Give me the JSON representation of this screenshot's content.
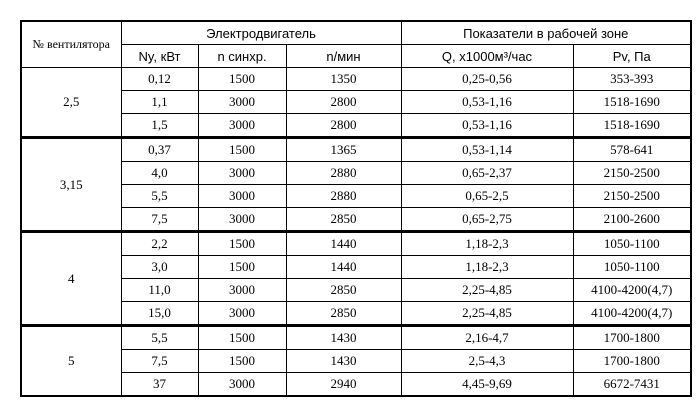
{
  "header": {
    "fan": "№ вентилятора",
    "motor": "Электродвигатель",
    "zone": "Показатели в рабочей зоне",
    "columns": [
      "Ny, кВт",
      "n синхр.",
      "n/мин",
      "Q, x1000м³/час",
      "Pv, Па"
    ]
  },
  "groups": [
    {
      "fan": "2,5",
      "rows": [
        [
          "0,12",
          "1500",
          "1350",
          "0,25-0,56",
          "353-393"
        ],
        [
          "1,1",
          "3000",
          "2800",
          "0,53-1,16",
          "1518-1690"
        ],
        [
          "1,5",
          "3000",
          "2800",
          "0,53-1,16",
          "1518-1690"
        ]
      ]
    },
    {
      "fan": "3,15",
      "rows": [
        [
          "0,37",
          "1500",
          "1365",
          "0,53-1,14",
          "578-641"
        ],
        [
          "4,0",
          "3000",
          "2880",
          "0,65-2,37",
          "2150-2500"
        ],
        [
          "5,5",
          "3000",
          "2880",
          "0,65-2,5",
          "2150-2500"
        ],
        [
          "7,5",
          "3000",
          "2850",
          "0,65-2,75",
          "2100-2600"
        ]
      ]
    },
    {
      "fan": "4",
      "rows": [
        [
          "2,2",
          "1500",
          "1440",
          "1,18-2,3",
          "1050-1100"
        ],
        [
          "3,0",
          "1500",
          "1440",
          "1,18-2,3",
          "1050-1100"
        ],
        [
          "11,0",
          "3000",
          "2850",
          "2,25-4,85",
          "4100-4200(4,7)"
        ],
        [
          "15,0",
          "3000",
          "2850",
          "2,25-4,85",
          "4100-4200(4,7)"
        ]
      ]
    },
    {
      "fan": "5",
      "rows": [
        [
          "5,5",
          "1500",
          "1430",
          "2,16-4,7",
          "1700-1800"
        ],
        [
          "7,5",
          "1500",
          "1430",
          "2,5-4,3",
          "1700-1800"
        ],
        [
          "37",
          "3000",
          "2940",
          "4,45-9,69",
          "6672-7431"
        ]
      ]
    }
  ]
}
